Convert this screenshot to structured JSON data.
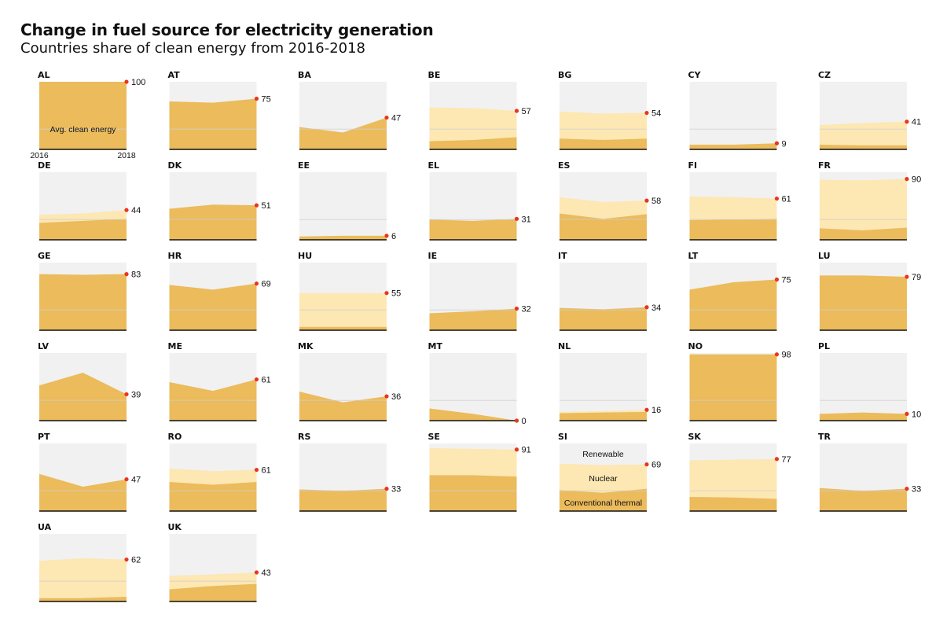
{
  "title": "Change in fuel source for electricity generation",
  "subtitle": "Countries share of clean energy from 2016-2018",
  "colors": {
    "background": "#f1f1f1",
    "renewable": "#fde7b3",
    "conventional_thermal": "#ebbb5c",
    "marker": "#e8361c",
    "baseline": "#111111",
    "average_line": "#cfcfcf"
  },
  "annotations": {
    "avg_label": "Avg. clean energy",
    "x_start": "2016",
    "x_end": "2018",
    "renewable": "Renewable",
    "nuclear": "Nuclear",
    "conventional": "Conventional thermal"
  },
  "chart_data": {
    "type": "area",
    "grid": false,
    "x": [
      "2016",
      "2017",
      "2018"
    ],
    "ylim": [
      0,
      100
    ],
    "average_clean_energy": 30,
    "panels": [
      {
        "code": "AL",
        "label": "100",
        "lower": [
          100,
          100,
          100
        ],
        "total": [
          100,
          100,
          100
        ]
      },
      {
        "code": "AT",
        "label": "75",
        "lower": [
          71,
          69,
          75
        ],
        "total": [
          71,
          69,
          75
        ]
      },
      {
        "code": "BA",
        "label": "47",
        "lower": [
          33,
          25,
          47
        ],
        "total": [
          33,
          25,
          47
        ]
      },
      {
        "code": "BE",
        "label": "57",
        "lower": [
          12,
          14,
          18
        ],
        "total": [
          62,
          61,
          57
        ]
      },
      {
        "code": "BG",
        "label": "54",
        "lower": [
          16,
          14,
          16
        ],
        "total": [
          56,
          53,
          54
        ]
      },
      {
        "code": "CY",
        "label": "9",
        "lower": [
          7,
          7,
          9
        ],
        "total": [
          7,
          7,
          9
        ]
      },
      {
        "code": "CZ",
        "label": "41",
        "lower": [
          7,
          6,
          6
        ],
        "total": [
          36,
          39,
          41
        ]
      },
      {
        "code": "DE",
        "label": "44",
        "lower": [
          25,
          28,
          31
        ],
        "total": [
          37,
          39,
          44
        ]
      },
      {
        "code": "DK",
        "label": "51",
        "lower": [
          46,
          52,
          51
        ],
        "total": [
          46,
          52,
          51
        ]
      },
      {
        "code": "EE",
        "label": "6",
        "lower": [
          5,
          6,
          6
        ],
        "total": [
          5,
          6,
          6
        ]
      },
      {
        "code": "EL",
        "label": "31",
        "lower": [
          30,
          28,
          31
        ],
        "total": [
          30,
          28,
          31
        ]
      },
      {
        "code": "ES",
        "label": "58",
        "lower": [
          39,
          31,
          38
        ],
        "total": [
          63,
          56,
          58
        ]
      },
      {
        "code": "FI",
        "label": "61",
        "lower": [
          29,
          30,
          31
        ],
        "total": [
          64,
          63,
          61
        ]
      },
      {
        "code": "FR",
        "label": "90",
        "lower": [
          17,
          14,
          18
        ],
        "total": [
          89,
          88,
          90
        ]
      },
      {
        "code": "GE",
        "label": "83",
        "lower": [
          83,
          82,
          83
        ],
        "total": [
          83,
          82,
          83
        ]
      },
      {
        "code": "HR",
        "label": "69",
        "lower": [
          67,
          60,
          69
        ],
        "total": [
          67,
          60,
          69
        ]
      },
      {
        "code": "HU",
        "label": "55",
        "lower": [
          5,
          5,
          5
        ],
        "total": [
          55,
          55,
          55
        ]
      },
      {
        "code": "IE",
        "label": "32",
        "lower": [
          25,
          28,
          32
        ],
        "total": [
          25,
          28,
          32
        ]
      },
      {
        "code": "IT",
        "label": "34",
        "lower": [
          33,
          31,
          34
        ],
        "total": [
          33,
          31,
          34
        ]
      },
      {
        "code": "LT",
        "label": "75",
        "lower": [
          60,
          71,
          75
        ],
        "total": [
          60,
          71,
          75
        ]
      },
      {
        "code": "LU",
        "label": "79",
        "lower": [
          81,
          81,
          79
        ],
        "total": [
          81,
          81,
          79
        ]
      },
      {
        "code": "LV",
        "label": "39",
        "lower": [
          52,
          71,
          39
        ],
        "total": [
          52,
          71,
          39
        ]
      },
      {
        "code": "ME",
        "label": "61",
        "lower": [
          57,
          44,
          61
        ],
        "total": [
          57,
          44,
          61
        ]
      },
      {
        "code": "MK",
        "label": "36",
        "lower": [
          43,
          27,
          36
        ],
        "total": [
          43,
          27,
          36
        ]
      },
      {
        "code": "MT",
        "label": "0",
        "lower": [
          18,
          10,
          0
        ],
        "total": [
          18,
          10,
          0
        ]
      },
      {
        "code": "NL",
        "label": "16",
        "lower": [
          11,
          12,
          13
        ],
        "total": [
          13,
          14,
          16
        ]
      },
      {
        "code": "NO",
        "label": "98",
        "lower": [
          98,
          98,
          98
        ],
        "total": [
          98,
          98,
          98
        ]
      },
      {
        "code": "PL",
        "label": "10",
        "lower": [
          10,
          12,
          10
        ],
        "total": [
          10,
          12,
          10
        ]
      },
      {
        "code": "PT",
        "label": "47",
        "lower": [
          55,
          36,
          47
        ],
        "total": [
          55,
          36,
          47
        ]
      },
      {
        "code": "RO",
        "label": "61",
        "lower": [
          43,
          39,
          43
        ],
        "total": [
          63,
          59,
          61
        ]
      },
      {
        "code": "RS",
        "label": "33",
        "lower": [
          32,
          30,
          33
        ],
        "total": [
          32,
          30,
          33
        ]
      },
      {
        "code": "SE",
        "label": "91",
        "lower": [
          53,
          53,
          51
        ],
        "total": [
          93,
          92,
          91
        ]
      },
      {
        "code": "SI",
        "label": "69",
        "lower": [
          31,
          27,
          33
        ],
        "total": [
          70,
          68,
          69
        ]
      },
      {
        "code": "SK",
        "label": "77",
        "lower": [
          21,
          20,
          18
        ],
        "total": [
          75,
          76,
          77
        ]
      },
      {
        "code": "TR",
        "label": "33",
        "lower": [
          34,
          30,
          33
        ],
        "total": [
          34,
          30,
          33
        ]
      },
      {
        "code": "UA",
        "label": "62",
        "lower": [
          5,
          5,
          7
        ],
        "total": [
          60,
          64,
          62
        ]
      },
      {
        "code": "UK",
        "label": "43",
        "lower": [
          18,
          23,
          26
        ],
        "total": [
          38,
          40,
          43
        ]
      }
    ]
  }
}
